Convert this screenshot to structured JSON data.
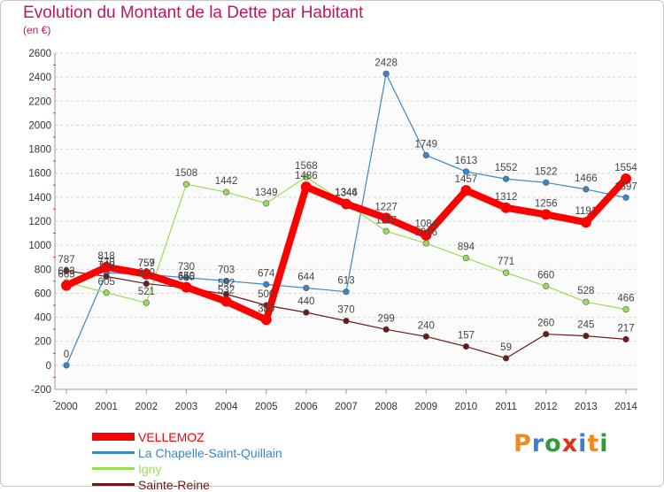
{
  "header": {
    "title": "Evolution du Montant de la Dette par Habitant",
    "subtitle": "(en €)"
  },
  "logo": {
    "letters": [
      "P",
      "r",
      "o",
      "x",
      "i",
      "t",
      "i"
    ],
    "text": "Proxiti"
  },
  "chart_data": {
    "type": "line",
    "title": "Evolution du Montant de la Dette par Habitant",
    "subtitle": "(en €)",
    "xlabel": "",
    "ylabel": "",
    "ylim": [
      -200,
      2600
    ],
    "ytick_step": 200,
    "grid": "horizontal dashed",
    "legend_position": "bottom-left",
    "categories": [
      "2000",
      "2001",
      "2002",
      "2003",
      "2004",
      "2005",
      "2006",
      "2007",
      "2008",
      "2009",
      "2010",
      "2011",
      "2012",
      "2013",
      "2014"
    ],
    "y_ticks": [
      "-200",
      "0",
      "200",
      "400",
      "600",
      "800",
      "1000",
      "1200",
      "1400",
      "1600",
      "1800",
      "2000",
      "2200",
      "2400",
      "2600"
    ],
    "series": [
      {
        "name": "VELLEMOZ",
        "color": "#ff0000",
        "values": [
          665,
          818,
          759,
          650,
          532,
          380,
          1486,
          1344,
          1227,
          1084,
          1457,
          1312,
          1256,
          1191,
          1554
        ],
        "labels": [
          "665",
          "818",
          "759",
          "650",
          "532",
          "380",
          "1486",
          "1344",
          "1227",
          "1084",
          "1457",
          "1312",
          "1256",
          "1191",
          "1554"
        ]
      },
      {
        "name": "La Chapelle-Saint-Quillain",
        "color": "#3a87c8",
        "values": [
          0,
          770,
          757,
          730,
          703,
          674,
          644,
          613,
          2428,
          1749,
          1613,
          1552,
          1522,
          1466,
          1397
        ],
        "labels": [
          "0",
          "770",
          "757",
          "730",
          "703",
          "674",
          "644",
          "613",
          "2428",
          "1749",
          "1613",
          "1552",
          "1522",
          "1466",
          "1397"
        ]
      },
      {
        "name": "Igny",
        "color": "#99dd55",
        "values": [
          693,
          605,
          521,
          1508,
          1442,
          1349,
          1568,
          1346,
          1117,
          1016,
          894,
          771,
          660,
          528,
          466
        ],
        "labels": [
          "693",
          "605",
          "521",
          "1508",
          "1442",
          "1349",
          "1568",
          "1346",
          "1117",
          "1016",
          "894",
          "771",
          "660",
          "528",
          "466"
        ]
      },
      {
        "name": "Sainte-Reine",
        "color": "#6b1a1a",
        "values": [
          787,
          740,
          680,
          645,
          592,
          500,
          440,
          370,
          299,
          240,
          157,
          59,
          260,
          245,
          217
        ],
        "labels": [
          "787",
          "740",
          "680",
          "645",
          "592",
          "500",
          "440",
          "370",
          "299",
          "240",
          "157",
          "59",
          "260",
          "245",
          "217"
        ]
      }
    ]
  }
}
